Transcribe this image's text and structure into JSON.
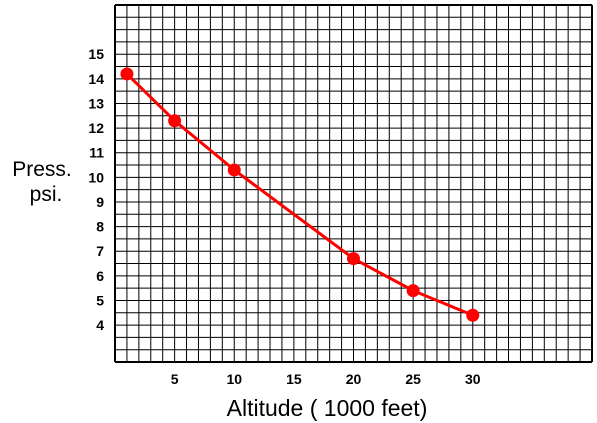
{
  "chart_data": {
    "type": "line",
    "title": "",
    "xlabel": "Altitude ( 1000 feet)",
    "ylabel": "Press.",
    "ylabel_unit": "psi.",
    "x_ticks": [
      5,
      10,
      15,
      20,
      25,
      30
    ],
    "y_ticks": [
      4,
      5,
      6,
      7,
      8,
      9,
      10,
      11,
      12,
      13,
      14,
      15
    ],
    "xlim": [
      0,
      40
    ],
    "ylim": [
      2.5,
      17
    ],
    "grid": true,
    "colors": {
      "line": "#ff0000",
      "grid": "#000000",
      "background": "#ffffff"
    },
    "series": [
      {
        "x": [
          1,
          5,
          10,
          20,
          25,
          30
        ],
        "y": [
          14.2,
          12.3,
          10.3,
          6.7,
          5.4,
          4.4
        ]
      }
    ]
  }
}
